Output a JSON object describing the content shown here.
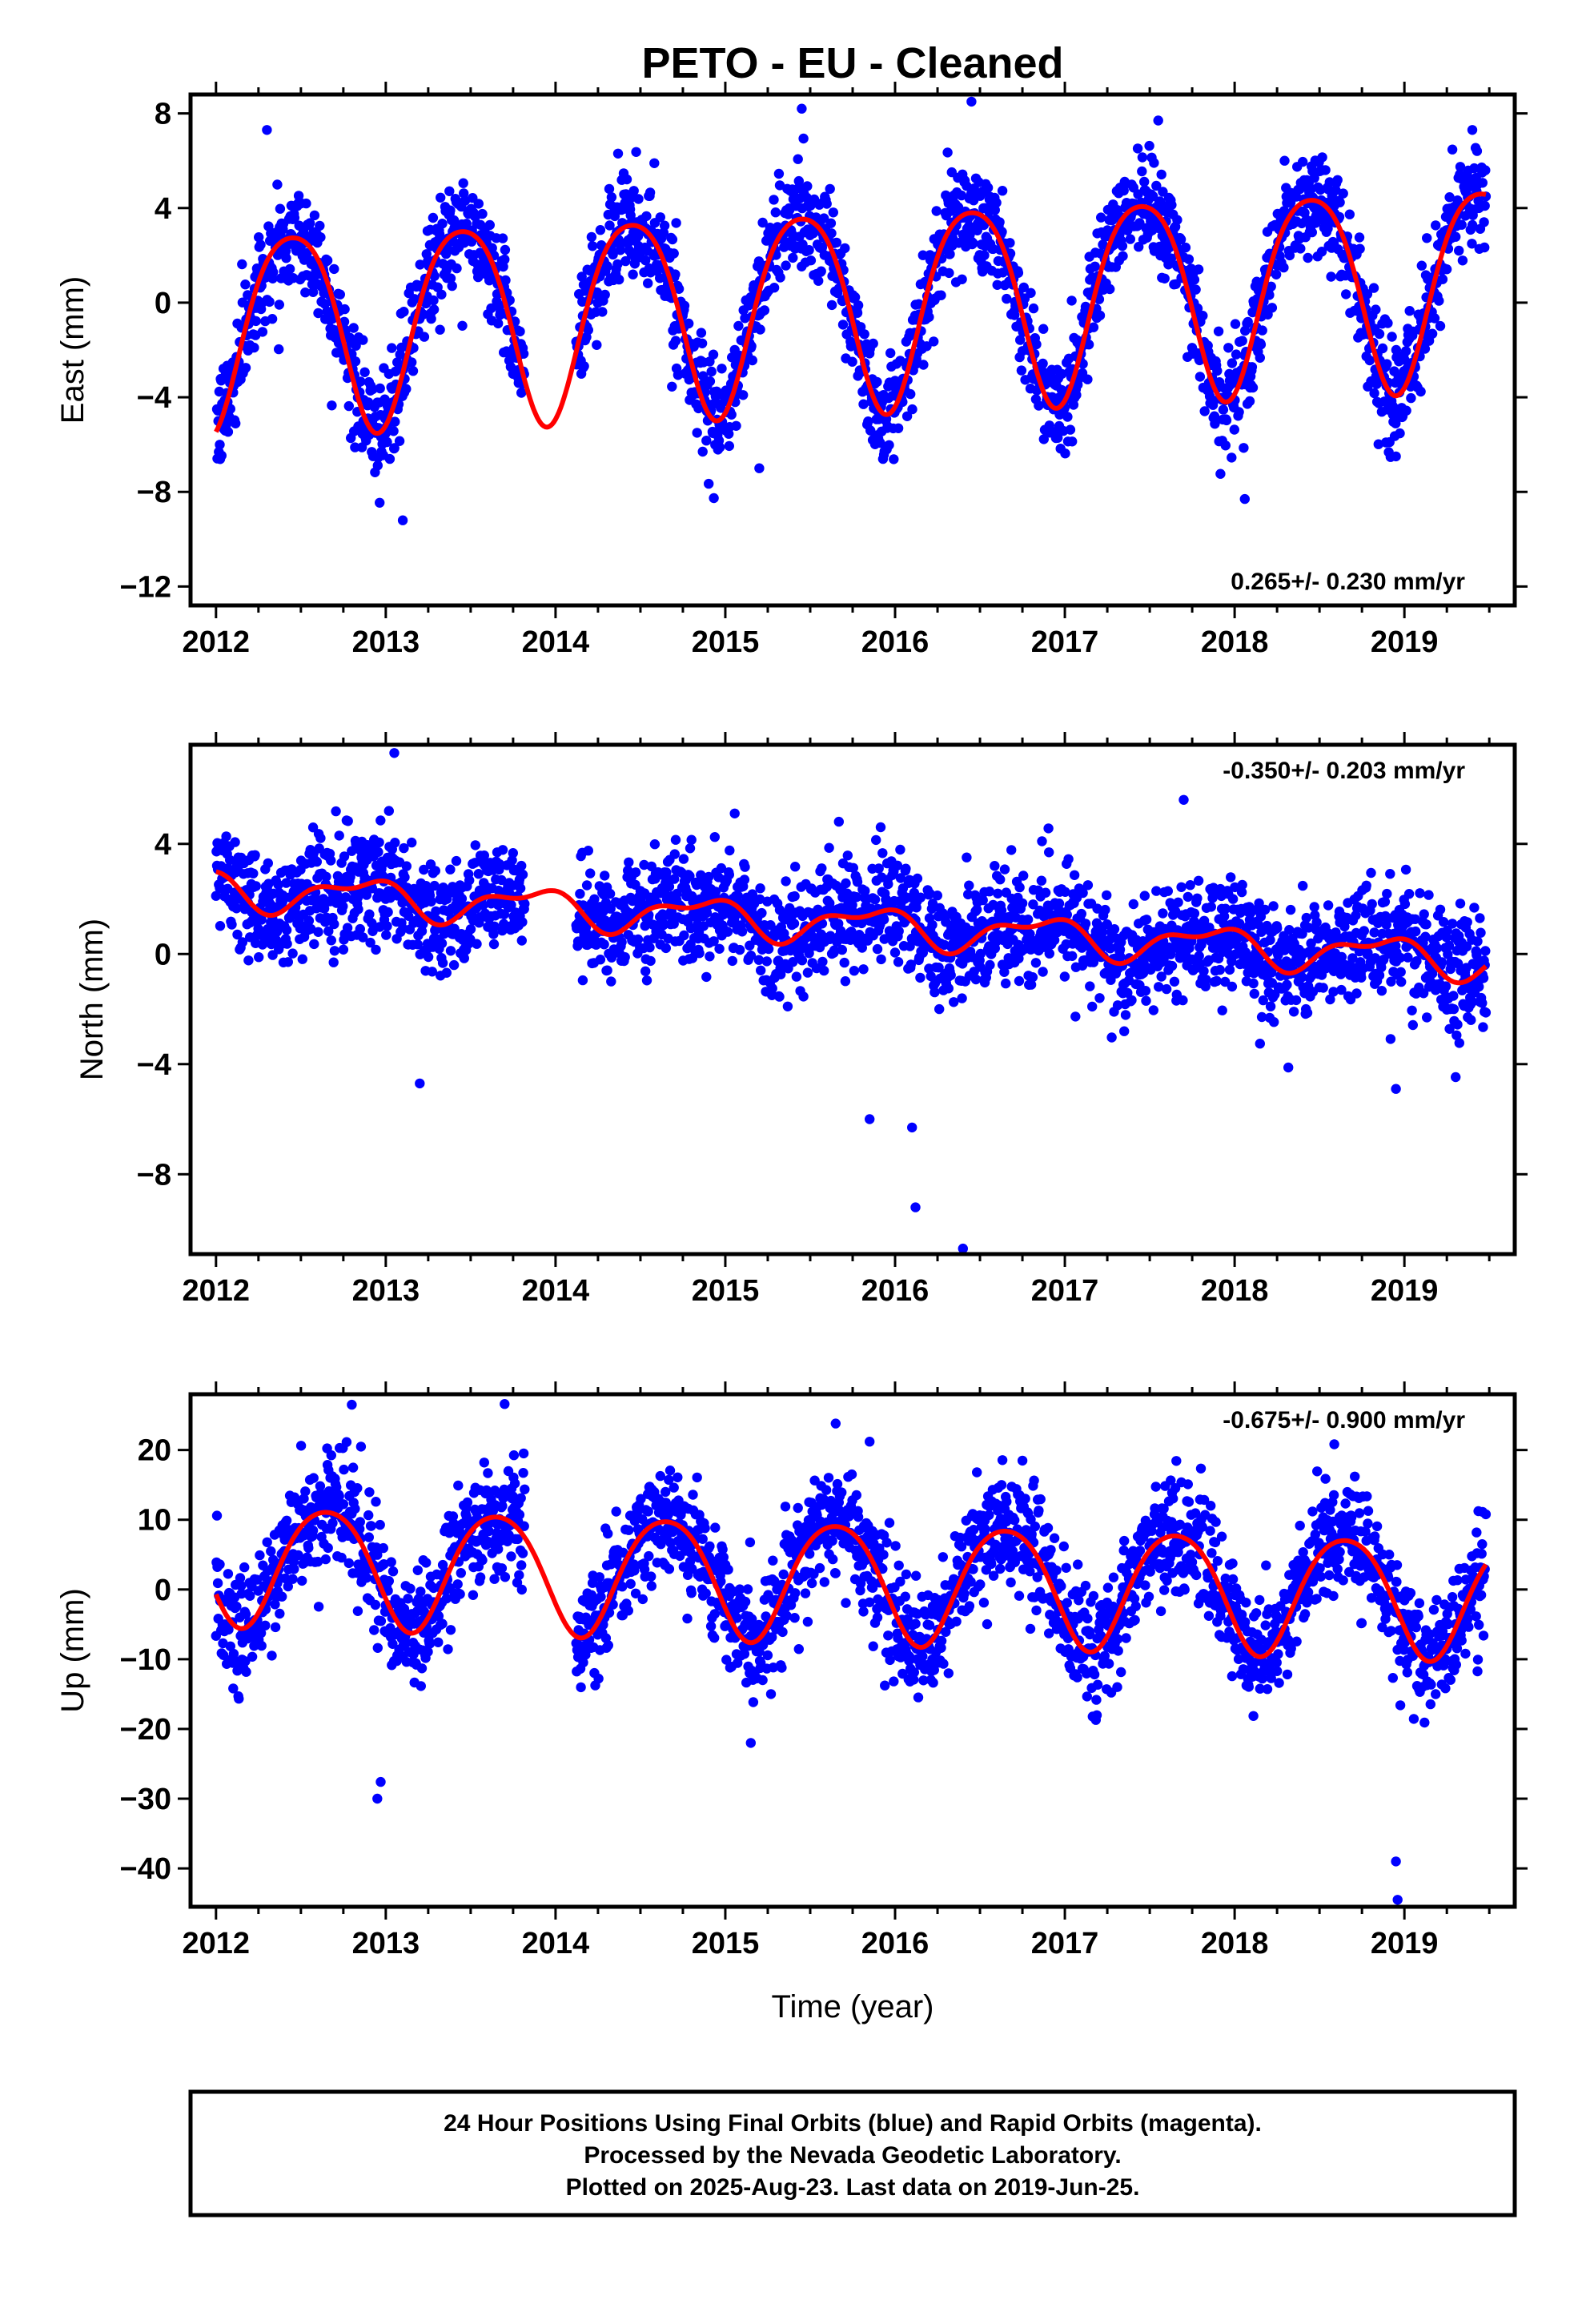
{
  "title": "PETO  - EU - Cleaned",
  "colors": {
    "points": "#0000ff",
    "model": "#ff0000",
    "frame": "#000000"
  },
  "footer": {
    "lines": [
      "24 Hour Positions Using Final Orbits (blue) and Rapid Orbits (magenta).",
      "Processed by the Nevada Geodetic Laboratory.",
      "Plotted on 2025-Aug-23. Last data on 2019-Jun-25."
    ]
  },
  "chart_data": [
    {
      "type": "scatter",
      "component": "east",
      "ylabel": "East (mm)",
      "xlim": [
        2011.85,
        2019.65
      ],
      "ylim": [
        -12.8,
        8.8
      ],
      "xticks": [
        "2012",
        "2013",
        "2014",
        "2015",
        "2016",
        "2017",
        "2018",
        "2019"
      ],
      "yticks": [
        8,
        4,
        0,
        -4,
        -8,
        -12
      ],
      "yticklabels": [
        "8",
        "4",
        "0",
        "−4",
        "−8",
        "−12"
      ],
      "rate_label": "0.265+/- 0.230 mm/yr",
      "rate_position": "bottom-right",
      "data_start": 2012.0,
      "data_end": 2019.48,
      "gaps": [
        [
          2013.82,
          2014.12
        ]
      ],
      "model": {
        "offset": 0.0,
        "trend": 0.265,
        "annual_amp": 4.2,
        "annual_peak": 2012.45,
        "semi_amp": 0.6,
        "semi_peak": 2012.2
      },
      "noise_sd": 1.1,
      "outliers": [
        [
          2012.3,
          7.3
        ],
        [
          2013.1,
          -9.2
        ],
        [
          2015.2,
          -7.0
        ],
        [
          2015.45,
          8.2
        ],
        [
          2016.45,
          8.5
        ],
        [
          2017.55,
          7.7
        ],
        [
          2018.06,
          -8.3
        ],
        [
          2018.95,
          -6.5
        ],
        [
          2019.4,
          7.3
        ]
      ]
    },
    {
      "type": "scatter",
      "component": "north",
      "ylabel": "North (mm)",
      "xlim": [
        2011.85,
        2019.65
      ],
      "ylim": [
        -10.9,
        7.6
      ],
      "xticks": [
        "2012",
        "2013",
        "2014",
        "2015",
        "2016",
        "2017",
        "2018",
        "2019"
      ],
      "yticks": [
        4,
        0,
        -4,
        -8
      ],
      "yticklabels": [
        "4",
        "0",
        "−4",
        "−8"
      ],
      "rate_label": "-0.350+/- 0.203 mm/yr",
      "rate_position": "top-right",
      "data_start": 2012.0,
      "data_end": 2019.48,
      "gaps": [
        [
          2013.82,
          2014.12
        ]
      ],
      "model": {
        "offset": 1.1,
        "trend": -0.35,
        "annual_amp": 0.6,
        "annual_peak": 2012.85,
        "semi_amp": 0.3,
        "semi_peak": 2012.55
      },
      "noise_sd": 1.0,
      "outliers": [
        [
          2013.2,
          -4.7
        ],
        [
          2013.05,
          7.3
        ],
        [
          2015.85,
          -6.0
        ],
        [
          2016.1,
          -6.3
        ],
        [
          2016.12,
          -9.2
        ],
        [
          2016.4,
          -10.7
        ],
        [
          2017.7,
          5.6
        ],
        [
          2018.95,
          -4.9
        ]
      ]
    },
    {
      "type": "scatter",
      "component": "up",
      "ylabel": "Up (mm)",
      "xlabel": "Time (year)",
      "xlim": [
        2011.85,
        2019.65
      ],
      "ylim": [
        -45.5,
        28.0
      ],
      "xticks": [
        "2012",
        "2013",
        "2014",
        "2015",
        "2016",
        "2017",
        "2018",
        "2019"
      ],
      "yticks": [
        20,
        10,
        0,
        -10,
        -20,
        -30,
        -40
      ],
      "yticklabels": [
        "20",
        "10",
        "0",
        "−10",
        "−20",
        "−30",
        "−40"
      ],
      "rate_label": "-0.675+/- 0.900 mm/yr",
      "rate_position": "top-right",
      "data_start": 2012.0,
      "data_end": 2019.48,
      "gaps": [
        [
          2013.82,
          2014.12
        ]
      ],
      "model": {
        "offset": 1.5,
        "trend": -0.675,
        "annual_amp": 8.5,
        "annual_peak": 2012.65,
        "semi_amp": 1.0,
        "semi_peak": 2012.4
      },
      "noise_sd": 4.2,
      "outliers": [
        [
          2012.8,
          26.5
        ],
        [
          2013.7,
          26.6
        ],
        [
          2012.95,
          -30.0
        ],
        [
          2012.97,
          -27.6
        ],
        [
          2015.15,
          -22.0
        ],
        [
          2015.65,
          23.8
        ],
        [
          2015.85,
          21.2
        ],
        [
          2018.95,
          -39.0
        ],
        [
          2018.96,
          -44.5
        ]
      ]
    }
  ]
}
